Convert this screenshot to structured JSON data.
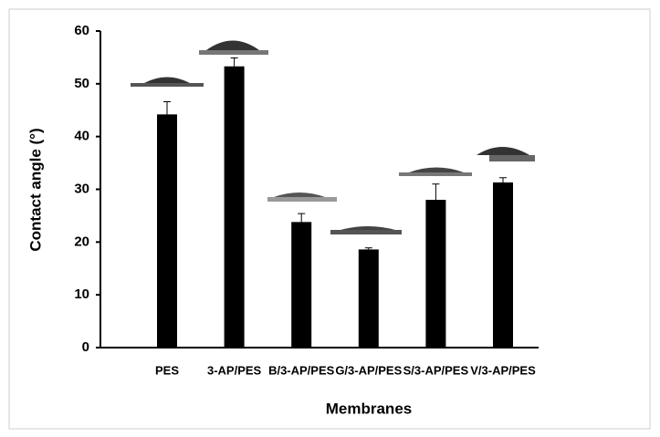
{
  "chart_data": {
    "type": "bar",
    "categories": [
      "PES",
      "3-AP/PES",
      "B/3-AP/PES",
      "G/3-AP/PES",
      "S/3-AP/PES",
      "V/3-AP/PES"
    ],
    "values": [
      44.2,
      53.3,
      23.8,
      18.6,
      28,
      31.3
    ],
    "errors": [
      2.4,
      1.6,
      1.6,
      0.3,
      3,
      0.9
    ],
    "color": "#000000",
    "xlabel": "Membranes",
    "ylabel": "Contact angle (°)",
    "ylim": [
      0,
      60
    ],
    "yticks": [
      0,
      10,
      20,
      30,
      40,
      50,
      60
    ]
  }
}
